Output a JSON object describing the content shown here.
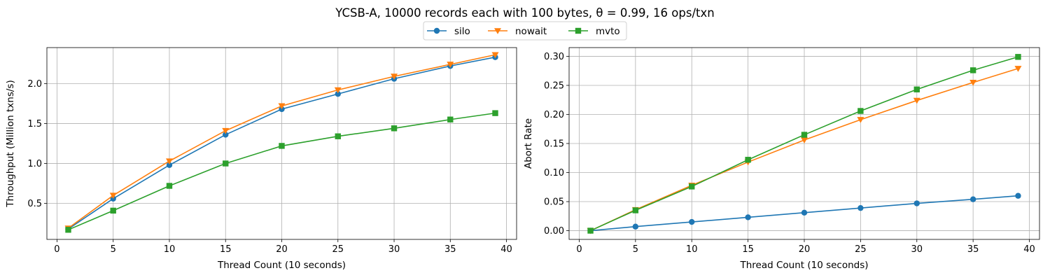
{
  "figure": {
    "title": "YCSB-A, 10000 records each with 100 bytes, θ = 0.99, 16 ops/txn"
  },
  "legend": {
    "placement": "top-center",
    "entries": [
      {
        "name": "silo",
        "color": "#1f77b4",
        "marker": "circle"
      },
      {
        "name": "nowait",
        "color": "#ff7f0e",
        "marker": "triangle-down"
      },
      {
        "name": "mvto",
        "color": "#2ca02c",
        "marker": "square"
      }
    ]
  },
  "chart_data": [
    {
      "type": "line",
      "title": "",
      "xlabel": "Thread Count (10 seconds)",
      "ylabel": "Throughput (Million txns/s)",
      "xlim": [
        -0.9,
        40.9
      ],
      "ylim": [
        0.05,
        2.45
      ],
      "xticks": [
        0,
        5,
        10,
        15,
        20,
        25,
        30,
        35,
        40
      ],
      "yticks": [
        0.5,
        1.0,
        1.5,
        2.0
      ],
      "ytick_labels": [
        "0.5",
        "1.0",
        "1.5",
        "2.0"
      ],
      "grid": true,
      "x": [
        1,
        5,
        10,
        15,
        20,
        25,
        30,
        35,
        39
      ],
      "series": [
        {
          "name": "silo",
          "color": "#1f77b4",
          "marker": "circle",
          "values": [
            0.18,
            0.56,
            0.98,
            1.36,
            1.68,
            1.87,
            2.06,
            2.22,
            2.33
          ]
        },
        {
          "name": "nowait",
          "color": "#ff7f0e",
          "marker": "triangle-down",
          "values": [
            0.19,
            0.6,
            1.03,
            1.41,
            1.72,
            1.92,
            2.09,
            2.24,
            2.36
          ]
        },
        {
          "name": "mvto",
          "color": "#2ca02c",
          "marker": "square",
          "values": [
            0.17,
            0.41,
            0.72,
            1.0,
            1.22,
            1.34,
            1.44,
            1.55,
            1.63
          ]
        }
      ]
    },
    {
      "type": "line",
      "title": "",
      "xlabel": "Thread Count (10 seconds)",
      "ylabel": "Abort Rate",
      "xlim": [
        -0.9,
        40.9
      ],
      "ylim": [
        -0.015,
        0.315
      ],
      "xticks": [
        0,
        5,
        10,
        15,
        20,
        25,
        30,
        35,
        40
      ],
      "yticks": [
        0.0,
        0.05,
        0.1,
        0.15,
        0.2,
        0.25,
        0.3
      ],
      "ytick_labels": [
        "0.00",
        "0.05",
        "0.10",
        "0.15",
        "0.20",
        "0.25",
        "0.30"
      ],
      "grid": true,
      "x": [
        1,
        5,
        10,
        15,
        20,
        25,
        30,
        35,
        39
      ],
      "series": [
        {
          "name": "silo",
          "color": "#1f77b4",
          "marker": "circle",
          "values": [
            0.0,
            0.007,
            0.015,
            0.023,
            0.031,
            0.039,
            0.047,
            0.054,
            0.06
          ]
        },
        {
          "name": "nowait",
          "color": "#ff7f0e",
          "marker": "triangle-down",
          "values": [
            0.0,
            0.036,
            0.078,
            0.118,
            0.156,
            0.191,
            0.224,
            0.255,
            0.279
          ]
        },
        {
          "name": "mvto",
          "color": "#2ca02c",
          "marker": "square",
          "values": [
            0.0,
            0.035,
            0.076,
            0.122,
            0.165,
            0.206,
            0.243,
            0.276,
            0.299
          ]
        }
      ]
    }
  ]
}
